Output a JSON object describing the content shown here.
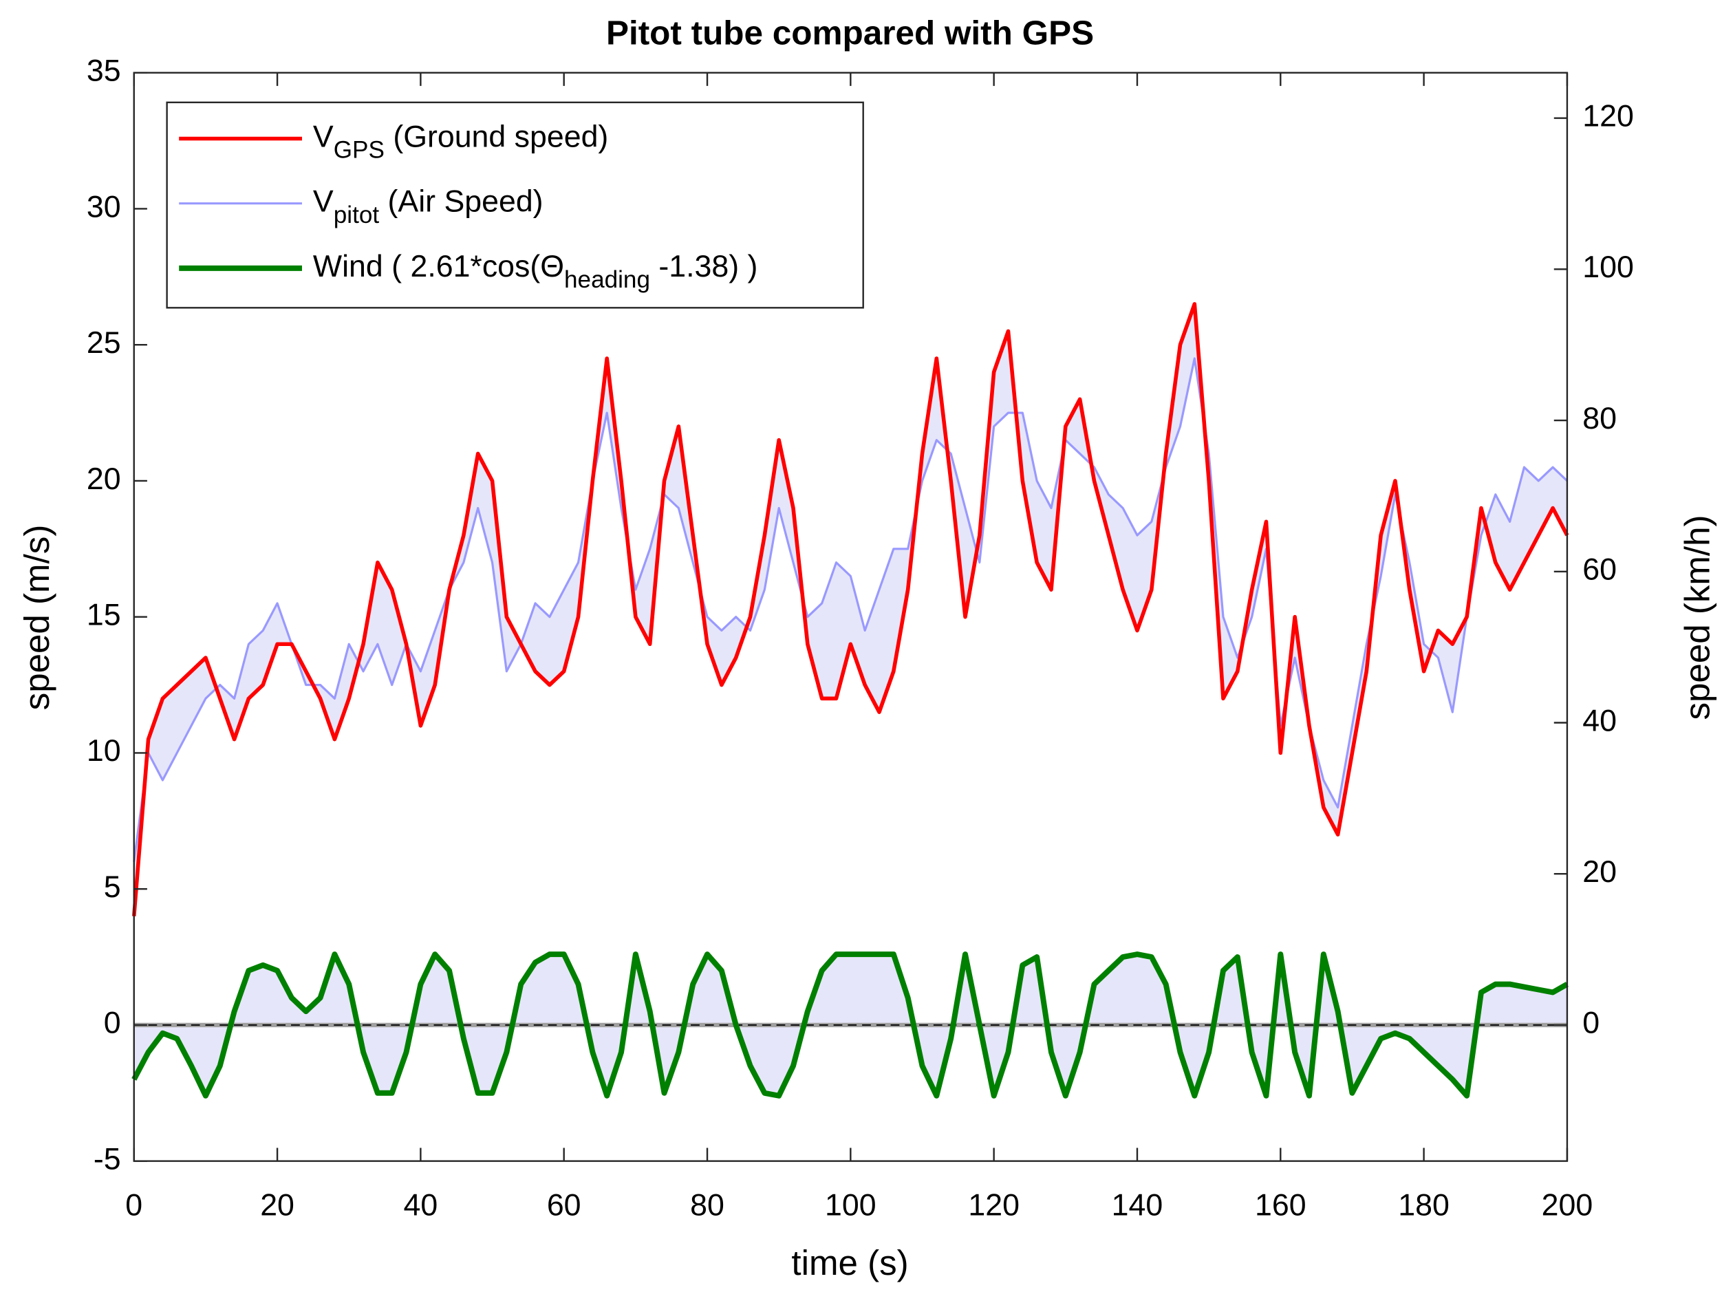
{
  "chart_data": {
    "type": "line",
    "title": "Pitot tube compared with GPS",
    "xlabel": "time (s)",
    "ylabel": "speed (m/s)",
    "y2label": "speed (km/h)",
    "xlim": [
      0,
      200
    ],
    "xticks": [
      0,
      20,
      40,
      60,
      80,
      100,
      120,
      140,
      160,
      180,
      200
    ],
    "ylim": [
      -5,
      35
    ],
    "yticks": [
      -5,
      0,
      5,
      10,
      15,
      20,
      25,
      30,
      35
    ],
    "y2lim": [
      -18,
      126
    ],
    "y2ticks": [
      0,
      20,
      40,
      60,
      80,
      100,
      120
    ],
    "zero_line": true,
    "legend": "upper left",
    "fill_color": "#e6e6fa",
    "x": [
      0,
      2,
      4,
      6,
      8,
      10,
      12,
      14,
      16,
      18,
      20,
      22,
      24,
      26,
      28,
      30,
      32,
      34,
      36,
      38,
      40,
      42,
      44,
      46,
      48,
      50,
      52,
      54,
      56,
      58,
      60,
      62,
      64,
      66,
      68,
      70,
      72,
      74,
      76,
      78,
      80,
      82,
      84,
      86,
      88,
      90,
      92,
      94,
      96,
      98,
      100,
      102,
      104,
      106,
      108,
      110,
      112,
      114,
      116,
      118,
      120,
      122,
      124,
      126,
      128,
      130,
      132,
      134,
      136,
      138,
      140,
      142,
      144,
      146,
      148,
      150,
      152,
      154,
      156,
      158,
      160,
      162,
      164,
      166,
      168,
      170,
      172,
      174,
      176,
      178,
      180,
      182,
      184,
      186,
      188,
      190,
      192,
      194,
      196,
      198,
      200
    ],
    "series": [
      {
        "name": [
          {
            "text": "V"
          },
          {
            "text": "GPS",
            "sub": true
          },
          {
            "text": " (Ground speed)"
          }
        ],
        "color": "#ff0000",
        "width": 3.5,
        "values": [
          4,
          10.5,
          12,
          12.5,
          13,
          13.5,
          12,
          10.5,
          12,
          12.5,
          14,
          14,
          13,
          12,
          10.5,
          12,
          14,
          17,
          16,
          14,
          11,
          12.5,
          16,
          18,
          21,
          20,
          15,
          14,
          13,
          12.5,
          13,
          15,
          20,
          24.5,
          20,
          15,
          14,
          20,
          22,
          18,
          14,
          12.5,
          13.5,
          15,
          18,
          21.5,
          19,
          14,
          12,
          12,
          14,
          12.5,
          11.5,
          13,
          16,
          21,
          24.5,
          20,
          15,
          18,
          24,
          25.5,
          20,
          17,
          16,
          22,
          23,
          20,
          18,
          16,
          14.5,
          16,
          21,
          25,
          26.5,
          20,
          12,
          13,
          16,
          18.5,
          10,
          15,
          11,
          8,
          7,
          10,
          13,
          18,
          20,
          16,
          13,
          14.5,
          14,
          15,
          19,
          17,
          16,
          17,
          18,
          19,
          18
        ]
      },
      {
        "name": [
          {
            "text": "V"
          },
          {
            "text": "pitot",
            "sub": true
          },
          {
            "text": " (Air Speed)"
          }
        ],
        "color": "#9999ff",
        "width": 2,
        "values": [
          6,
          10,
          9,
          10,
          11,
          12,
          12.5,
          12,
          14,
          14.5,
          15.5,
          14,
          12.5,
          12.5,
          12,
          14,
          13,
          14,
          12.5,
          14,
          13,
          14.5,
          16,
          17,
          19,
          17,
          13,
          14,
          15.5,
          15,
          16,
          17,
          20,
          22.5,
          19,
          16,
          17.5,
          19.5,
          19,
          17,
          15,
          14.5,
          15,
          14.5,
          16,
          19,
          17,
          15,
          15.5,
          17,
          16.5,
          14.5,
          16,
          17.5,
          17.5,
          20,
          21.5,
          21,
          19,
          17,
          22,
          22.5,
          22.5,
          20,
          19,
          21.5,
          21,
          20.5,
          19.5,
          19,
          18,
          18.5,
          20.5,
          22,
          24.5,
          21,
          15,
          13.5,
          15,
          17.5,
          11,
          13.5,
          11,
          9,
          8,
          11,
          14,
          16.5,
          19.5,
          17,
          14,
          13.5,
          11.5,
          15,
          18,
          19.5,
          18.5,
          20.5,
          20,
          20.5,
          20
        ]
      },
      {
        "name": [
          {
            "text": "Wind ( 2.61*cos(Θ"
          },
          {
            "text": "heading",
            "sub": true
          },
          {
            "text": " -1.38) )"
          }
        ],
        "color": "#008000",
        "width": 5,
        "values": [
          -2,
          -1,
          -0.3,
          -0.5,
          -1.5,
          -2.6,
          -1.5,
          0.5,
          2,
          2.2,
          2,
          1,
          0.5,
          1,
          2.6,
          1.5,
          -1,
          -2.5,
          -2.5,
          -1,
          1.5,
          2.6,
          2,
          -0.5,
          -2.5,
          -2.5,
          -1,
          1.5,
          2.3,
          2.6,
          2.6,
          1.5,
          -1,
          -2.6,
          -1,
          2.6,
          0.5,
          -2.5,
          -1,
          1.5,
          2.6,
          2,
          0,
          -1.5,
          -2.5,
          -2.6,
          -1.5,
          0.5,
          2,
          2.6,
          2.6,
          2.6,
          2.6,
          2.6,
          1,
          -1.5,
          -2.6,
          -0.5,
          2.6,
          0,
          -2.6,
          -1,
          2.2,
          2.5,
          -1,
          -2.6,
          -1,
          1.5,
          2,
          2.5,
          2.6,
          2.5,
          1.5,
          -1,
          -2.6,
          -1,
          2,
          2.5,
          -1,
          -2.6,
          2.6,
          -1,
          -2.6,
          2.6,
          0.5,
          -2.5,
          -1.5,
          -0.5,
          -0.3,
          -0.5,
          -1,
          -1.5,
          -2,
          -2.6,
          1.2,
          1.5,
          1.5,
          1.4,
          1.3,
          1.2,
          1.5
        ]
      }
    ]
  }
}
